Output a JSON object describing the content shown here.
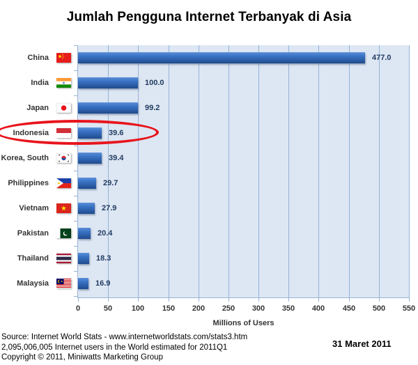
{
  "chart_data": {
    "type": "bar",
    "orientation": "horizontal",
    "title": "Jumlah Pengguna Internet Terbanyak di Asia",
    "xlabel": "Millions of Users",
    "ylabel": "",
    "xlim": [
      0,
      550
    ],
    "xticks": [
      0,
      50,
      100,
      150,
      200,
      250,
      300,
      350,
      400,
      450,
      500,
      550
    ],
    "grid": true,
    "legend": null,
    "categories": [
      "China",
      "India",
      "Japan",
      "Indonesia",
      "Korea, South",
      "Philippines",
      "Vietnam",
      "Pakistan",
      "Thailand",
      "Malaysia"
    ],
    "values": [
      477.0,
      100.0,
      99.2,
      39.6,
      39.4,
      29.7,
      27.9,
      20.4,
      18.3,
      16.9
    ],
    "value_labels": [
      "477.0",
      "100.0",
      "99.2",
      "39.6",
      "39.4",
      "29.7",
      "27.9",
      "20.4",
      "18.3",
      "16.9"
    ],
    "annotations": [
      {
        "type": "ellipse-highlight",
        "target": "Indonesia",
        "color": "#e8141c"
      }
    ],
    "bar_color": "#3a72c4",
    "plot_background": "#dde6f3"
  },
  "title": "Jumlah Pengguna Internet Terbanyak di Asia",
  "xaxis": {
    "title": "Millions of Users",
    "ticks": [
      "0",
      "50",
      "100",
      "150",
      "200",
      "250",
      "300",
      "350",
      "400",
      "450",
      "500",
      "550"
    ]
  },
  "rows": [
    {
      "country": "China",
      "flag": "china-flag",
      "value": "477.0"
    },
    {
      "country": "India",
      "flag": "india-flag",
      "value": "100.0"
    },
    {
      "country": "Japan",
      "flag": "japan-flag",
      "value": "99.2"
    },
    {
      "country": "Indonesia",
      "flag": "indonesia-flag",
      "value": "39.6"
    },
    {
      "country": "Korea, South",
      "flag": "south-korea-flag",
      "value": "39.4"
    },
    {
      "country": "Philippines",
      "flag": "philippines-flag",
      "value": "29.7"
    },
    {
      "country": "Vietnam",
      "flag": "vietnam-flag",
      "value": "27.9"
    },
    {
      "country": "Pakistan",
      "flag": "pakistan-flag",
      "value": "20.4"
    },
    {
      "country": "Thailand",
      "flag": "thailand-flag",
      "value": "18.3"
    },
    {
      "country": "Malaysia",
      "flag": "malaysia-flag",
      "value": "16.9"
    }
  ],
  "footer": {
    "source": "Source: Internet World Stats - www.internetworldstats.com/stats3.htm",
    "total": "2,095,006,005 Internet users in the World estimated for 2011Q1",
    "copyright": "Copyright © 2011, Miniwatts Marketing Group"
  },
  "date": "31 Maret 2011"
}
